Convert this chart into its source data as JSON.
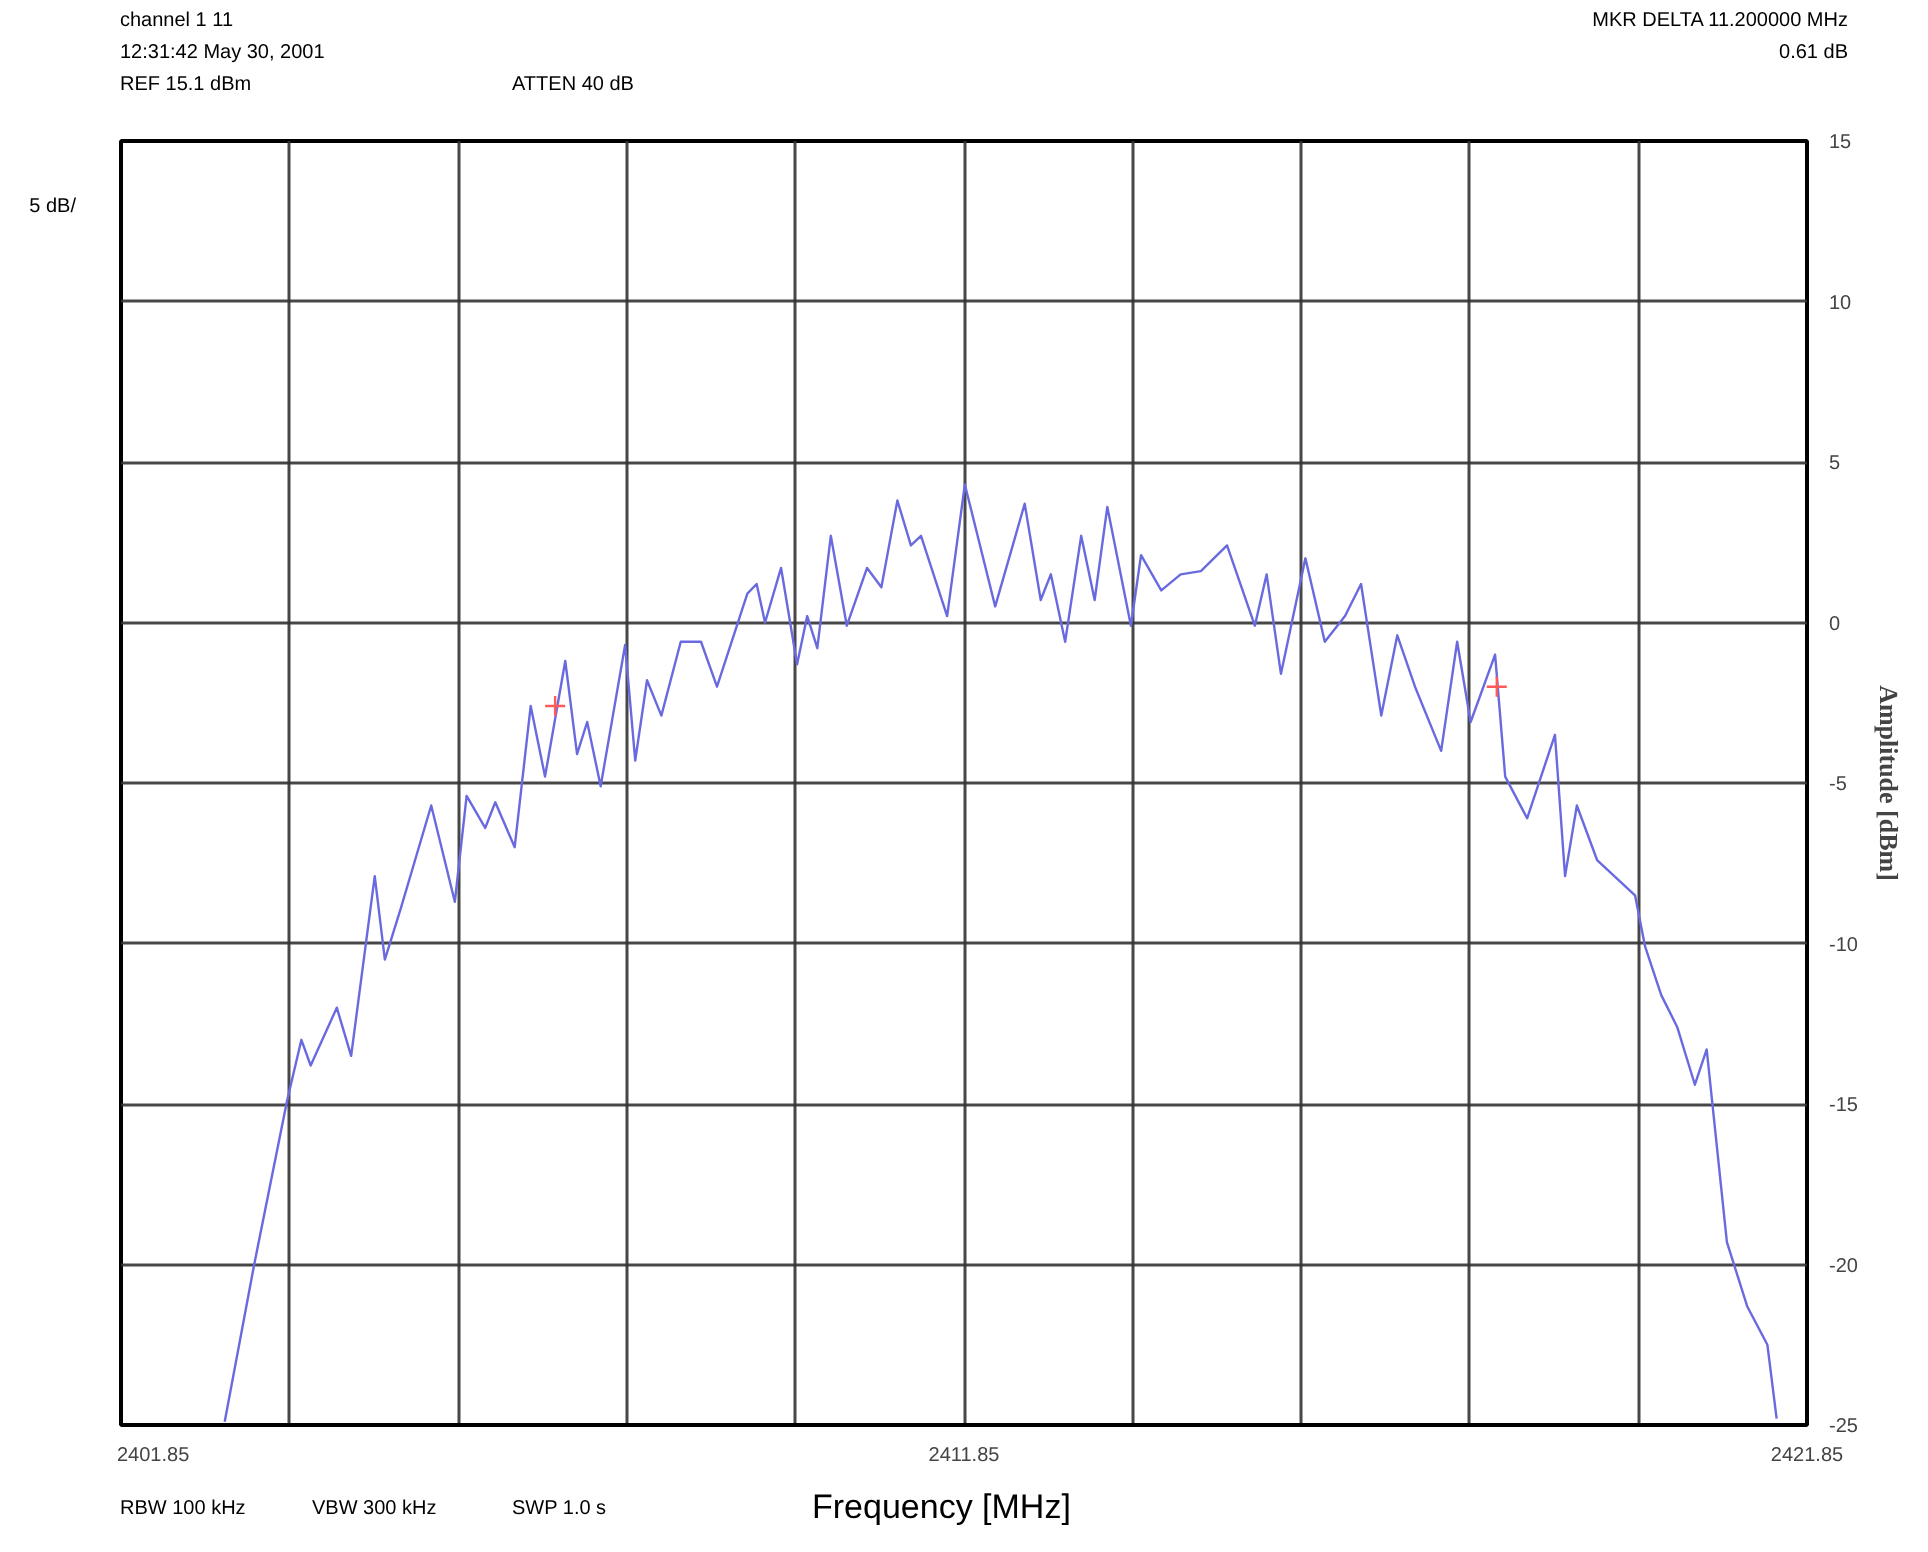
{
  "chart_data": {
    "type": "line",
    "title": "channel 1 11",
    "subtitle": "12:31:42 May 30, 2001",
    "xlabel": "Frequency [MHz]",
    "ylabel": "Amplitude [dBm]",
    "annotations": [
      "REF 15.1 dBm",
      "ATTEN 40 dB",
      "MKR DELTA 11.200000 MHz",
      "0.61 dB",
      "5 dB/",
      "RBW 100 kHz",
      "VBW 300 kHz",
      "SWP 1.0 s"
    ],
    "xlim": [
      2401.85,
      2421.85
    ],
    "ylim": [
      -25,
      15
    ],
    "xticks": [
      2401.85,
      {
        "value": 2403.85,
        "label": null
      },
      {
        "value": 2405.85,
        "label": null
      },
      {
        "value": 2407.85,
        "label": null
      },
      {
        "value": 2409.85,
        "label": null
      },
      2411.85,
      {
        "value": 2413.85,
        "label": null
      },
      {
        "value": 2415.85,
        "label": null
      },
      {
        "value": 2417.85,
        "label": null
      },
      {
        "value": 2419.85,
        "label": null
      },
      2421.85
    ],
    "yticks": [
      15,
      10,
      5,
      0,
      -5,
      -10,
      -15,
      -20,
      -25
    ],
    "grid": true,
    "series": [
      {
        "color": "#6a6ae0",
        "x": [
          2403.08,
          2403.43,
          2403.82,
          2403.99,
          2404.1,
          2404.41,
          2404.58,
          2404.86,
          2404.98,
          2405.17,
          2405.53,
          2405.81,
          2405.95,
          2406.17,
          2406.29,
          2406.52,
          2406.71,
          2406.88,
          2407.12,
          2407.26,
          2407.38,
          2407.54,
          2407.83,
          2407.95,
          2408.09,
          2408.26,
          2408.49,
          2408.73,
          2408.92,
          2409.28,
          2409.39,
          2409.49,
          2409.68,
          2409.87,
          2409.99,
          2410.11,
          2410.27,
          2410.46,
          2410.7,
          2410.87,
          2411.06,
          2411.22,
          2411.34,
          2411.65,
          2411.86,
          2412.22,
          2412.57,
          2412.76,
          2412.88,
          2413.05,
          2413.24,
          2413.4,
          2413.55,
          2413.83,
          2413.95,
          2414.19,
          2414.42,
          2414.66,
          2414.97,
          2415.3,
          2415.44,
          2415.61,
          2415.9,
          2416.13,
          2416.37,
          2416.56,
          2416.8,
          2416.99,
          2417.2,
          2417.51,
          2417.7,
          2417.86,
          2418.15,
          2418.27,
          2418.53,
          2418.86,
          2418.98,
          2419.12,
          2419.36,
          2419.81,
          2419.93,
          2420.12,
          2420.31,
          2420.52,
          2420.66,
          2420.9,
          2421.14,
          2421.38,
          2421.49
        ],
        "values": [
          -24.9,
          -20.0,
          -14.9,
          -13.0,
          -13.8,
          -12.0,
          -13.5,
          -7.9,
          -10.5,
          -8.9,
          -5.7,
          -8.7,
          -5.4,
          -6.4,
          -5.6,
          -7.0,
          -2.6,
          -4.8,
          -1.2,
          -4.1,
          -3.1,
          -5.1,
          -0.7,
          -4.3,
          -1.8,
          -2.9,
          -0.6,
          -0.6,
          -2.0,
          0.9,
          1.2,
          0.0,
          1.7,
          -1.3,
          0.2,
          -0.8,
          2.7,
          -0.1,
          1.7,
          1.1,
          3.8,
          2.4,
          2.7,
          0.2,
          4.3,
          0.5,
          3.7,
          0.7,
          1.5,
          -0.6,
          2.7,
          0.7,
          3.6,
          -0.1,
          2.1,
          1.0,
          1.5,
          1.6,
          2.4,
          -0.1,
          1.5,
          -1.6,
          2.0,
          -0.6,
          0.2,
          1.2,
          -2.9,
          -0.4,
          -2.0,
          -4.0,
          -0.6,
          -3.1,
          -1.0,
          -4.8,
          -6.1,
          -3.5,
          -7.9,
          -5.7,
          -7.4,
          -8.5,
          -10.1,
          -11.6,
          -12.6,
          -14.4,
          -13.3,
          -19.3,
          -21.3,
          -22.5,
          -24.8
        ]
      },
      {
        "type": "scatter",
        "color": "#ff5a5a",
        "marker": "cross",
        "x": [
          2407.0,
          2418.17
        ],
        "values": [
          -2.6,
          -2.0
        ]
      }
    ]
  }
}
